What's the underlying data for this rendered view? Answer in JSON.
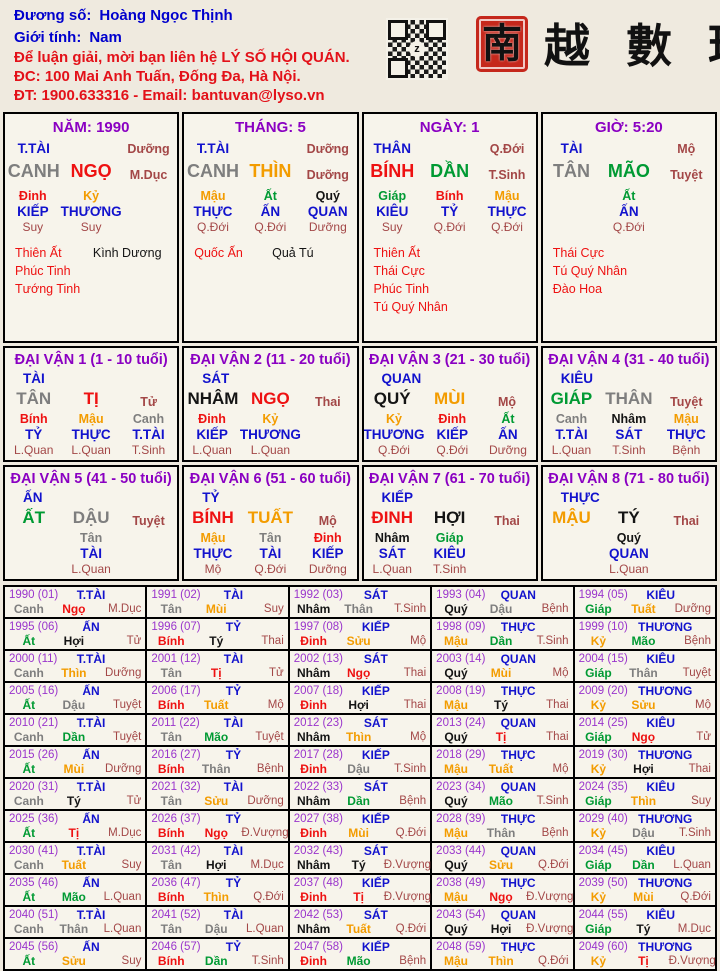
{
  "colors": {
    "blue": "#1212CD",
    "red": "#EE1111",
    "orange": "#F39C00",
    "green": "#009A33",
    "gray": "#7E7E7E",
    "black": "#141414",
    "stage": "#A34747",
    "purple": "#8A00C2",
    "year_label": "#9A35CC",
    "header_blue": "#0000CD",
    "header_red": "#E31119",
    "seal_red": "#C5281C"
  },
  "header": {
    "name_label": "Đương số:",
    "name_value": "Hoàng Ngọc Thịnh",
    "gender_label": "Giới tính:",
    "gender_value": "Nam",
    "contact_line1": "Để luận giải, mời bạn liên hệ LÝ SỐ HỘI QUÁN.",
    "contact_line2": "ĐC: 100 Mai Anh Tuấn, Đống Đa, Hà Nội.",
    "contact_line3": "ĐT: 1900.633316 - Email: bantuvan@lyso.vn",
    "logo_seal_char": "南",
    "logo_chars": "越 數 理"
  },
  "pillars": [
    {
      "title": "NĂM: 1990",
      "god": "T.TÀI",
      "stage1": "Dưỡng",
      "stem": "CANH",
      "stem_c": "gray",
      "branch": "NGỌ",
      "branch_c": "red",
      "stage2": "M.Dục",
      "hidden": [
        {
          "s": "Đinh",
          "c": "red",
          "g": "KIẾP",
          "st": "Suy"
        },
        {
          "s": "Kỷ",
          "c": "orange",
          "g": "THƯƠNG",
          "st": "Suy"
        },
        null
      ],
      "stars_red": [
        "Thiên Ất",
        "Phúc Tinh",
        "Tướng Tinh"
      ],
      "stars_black": [
        "Kình Dương"
      ]
    },
    {
      "title": "THÁNG: 5",
      "god": "T.TÀI",
      "stage1": "Dưỡng",
      "stem": "CANH",
      "stem_c": "gray",
      "branch": "THÌN",
      "branch_c": "orange",
      "stage2": "Dưỡng",
      "hidden": [
        {
          "s": "Mậu",
          "c": "orange",
          "g": "THỰC",
          "st": "Q.Đới"
        },
        {
          "s": "Ất",
          "c": "green",
          "g": "ẤN",
          "st": "Q.Đới"
        },
        {
          "s": "Quý",
          "c": "black",
          "g": "QUAN",
          "st": "Dưỡng"
        }
      ],
      "stars_red": [
        "Quốc Ấn"
      ],
      "stars_black": [
        "Quả Tú"
      ]
    },
    {
      "title": "NGÀY: 1",
      "god": "THÂN",
      "stage1": "Q.Đới",
      "stem": "BÍNH",
      "stem_c": "red",
      "branch": "DẦN",
      "branch_c": "green",
      "stage2": "T.Sinh",
      "hidden": [
        {
          "s": "Giáp",
          "c": "green",
          "g": "KIÊU",
          "st": "Suy"
        },
        {
          "s": "Bính",
          "c": "red",
          "g": "TỶ",
          "st": "Q.Đới"
        },
        {
          "s": "Mậu",
          "c": "orange",
          "g": "THỰC",
          "st": "Q.Đới"
        }
      ],
      "stars_red": [
        "Thiên Ất",
        "Thái Cực",
        "Phúc Tinh",
        "Tú Quý Nhân"
      ],
      "stars_black": []
    },
    {
      "title": "GIỜ: 5:20",
      "god": "TÀI",
      "stage1": "Mộ",
      "stem": "TÂN",
      "stem_c": "gray",
      "branch": "MÃO",
      "branch_c": "green",
      "stage2": "Tuyệt",
      "hidden": [
        null,
        {
          "s": "Ất",
          "c": "green",
          "g": "ẤN",
          "st": "Q.Đới"
        },
        null
      ],
      "stars_red": [
        "Thái Cực",
        "Tú Quý Nhân",
        "Đào Hoa"
      ],
      "stars_black": []
    }
  ],
  "dai_van": [
    {
      "title": "ĐẠI VẬN 1 (1 - 10 tuổi)",
      "god": "TÀI",
      "stem": "TÂN",
      "stem_c": "gray",
      "branch": "TỊ",
      "branch_c": "red",
      "stage": "Tử",
      "hidden": [
        {
          "s": "Bính",
          "c": "red",
          "g": "TỶ",
          "st": "L.Quan"
        },
        {
          "s": "Mậu",
          "c": "orange",
          "g": "THỰC",
          "st": "L.Quan"
        },
        {
          "s": "Canh",
          "c": "gray",
          "g": "T.TÀI",
          "st": "T.Sinh"
        }
      ]
    },
    {
      "title": "ĐẠI VẬN 2 (11 - 20 tuổi)",
      "god": "SÁT",
      "stem": "NHÂM",
      "stem_c": "black",
      "branch": "NGỌ",
      "branch_c": "red",
      "stage": "Thai",
      "hidden": [
        {
          "s": "Đinh",
          "c": "red",
          "g": "KIẾP",
          "st": "L.Quan"
        },
        {
          "s": "Kỷ",
          "c": "orange",
          "g": "THƯƠNG",
          "st": "L.Quan"
        },
        null
      ]
    },
    {
      "title": "ĐẠI VẬN 3 (21 - 30 tuổi)",
      "god": "QUAN",
      "stem": "QUÝ",
      "stem_c": "black",
      "branch": "MÙI",
      "branch_c": "orange",
      "stage": "Mộ",
      "hidden": [
        {
          "s": "Kỷ",
          "c": "orange",
          "g": "THƯƠNG",
          "st": "Q.Đới"
        },
        {
          "s": "Đinh",
          "c": "red",
          "g": "KIẾP",
          "st": "Q.Đới"
        },
        {
          "s": "Ất",
          "c": "green",
          "g": "ẤN",
          "st": "Dưỡng"
        }
      ]
    },
    {
      "title": "ĐẠI VẬN 4 (31 - 40 tuổi)",
      "god": "KIÊU",
      "stem": "GIÁP",
      "stem_c": "green",
      "branch": "THÂN",
      "branch_c": "gray",
      "stage": "Tuyệt",
      "hidden": [
        {
          "s": "Canh",
          "c": "gray",
          "g": "T.TÀI",
          "st": "L.Quan"
        },
        {
          "s": "Nhâm",
          "c": "black",
          "g": "SÁT",
          "st": "T.Sinh"
        },
        {
          "s": "Mậu",
          "c": "orange",
          "g": "THỰC",
          "st": "Bệnh"
        }
      ]
    },
    {
      "title": "ĐẠI VẬN 5 (41 - 50 tuổi)",
      "god": "ẤN",
      "stem": "ẤT",
      "stem_c": "green",
      "branch": "DẬU",
      "branch_c": "gray",
      "stage": "Tuyệt",
      "hidden": [
        null,
        {
          "s": "Tân",
          "c": "gray",
          "g": "TÀI",
          "st": "L.Quan"
        },
        null
      ]
    },
    {
      "title": "ĐẠI VẬN 6 (51 - 60 tuổi)",
      "god": "TỶ",
      "stem": "BÍNH",
      "stem_c": "red",
      "branch": "TUẤT",
      "branch_c": "orange",
      "stage": "Mộ",
      "hidden": [
        {
          "s": "Mậu",
          "c": "orange",
          "g": "THỰC",
          "st": "Mộ"
        },
        {
          "s": "Tân",
          "c": "gray",
          "g": "TÀI",
          "st": "Q.Đới"
        },
        {
          "s": "Đinh",
          "c": "red",
          "g": "KIẾP",
          "st": "Dưỡng"
        }
      ]
    },
    {
      "title": "ĐẠI VẬN 7 (61 - 70 tuổi)",
      "god": "KIẾP",
      "stem": "ĐINH",
      "stem_c": "red",
      "branch": "HỢI",
      "branch_c": "black",
      "stage": "Thai",
      "hidden": [
        {
          "s": "Nhâm",
          "c": "black",
          "g": "SÁT",
          "st": "L.Quan"
        },
        {
          "s": "Giáp",
          "c": "green",
          "g": "KIÊU",
          "st": "T.Sinh"
        },
        null
      ]
    },
    {
      "title": "ĐẠI VẬN 8 (71 - 80 tuổi)",
      "god": "THỰC",
      "stem": "MẬU",
      "stem_c": "orange",
      "branch": "TÝ",
      "branch_c": "black",
      "stage": "Thai",
      "hidden": [
        null,
        {
          "s": "Quý",
          "c": "black",
          "g": "QUAN",
          "st": "L.Quan"
        },
        null
      ]
    }
  ],
  "years": [
    {
      "y": "1990 (01)",
      "g": "T.TÀI",
      "s": "Canh",
      "sc": "gray",
      "b": "Ngọ",
      "bc": "red",
      "st": "M.Dục"
    },
    {
      "y": "1991 (02)",
      "g": "TÀI",
      "s": "Tân",
      "sc": "gray",
      "b": "Mùi",
      "bc": "orange",
      "st": "Suy"
    },
    {
      "y": "1992 (03)",
      "g": "SÁT",
      "s": "Nhâm",
      "sc": "black",
      "b": "Thân",
      "bc": "gray",
      "st": "T.Sinh"
    },
    {
      "y": "1993 (04)",
      "g": "QUAN",
      "s": "Quý",
      "sc": "black",
      "b": "Dậu",
      "bc": "gray",
      "st": "Bệnh"
    },
    {
      "y": "1994 (05)",
      "g": "KIÊU",
      "s": "Giáp",
      "sc": "green",
      "b": "Tuất",
      "bc": "orange",
      "st": "Dưỡng"
    },
    {
      "y": "1995 (06)",
      "g": "ẤN",
      "s": "Ất",
      "sc": "green",
      "b": "Hợi",
      "bc": "black",
      "st": "Tử"
    },
    {
      "y": "1996 (07)",
      "g": "TỶ",
      "s": "Bính",
      "sc": "red",
      "b": "Tý",
      "bc": "black",
      "st": "Thai"
    },
    {
      "y": "1997 (08)",
      "g": "KIẾP",
      "s": "Đinh",
      "sc": "red",
      "b": "Sửu",
      "bc": "orange",
      "st": "Mộ"
    },
    {
      "y": "1998 (09)",
      "g": "THỰC",
      "s": "Mậu",
      "sc": "orange",
      "b": "Dần",
      "bc": "green",
      "st": "T.Sinh"
    },
    {
      "y": "1999 (10)",
      "g": "THƯƠNG",
      "s": "Kỷ",
      "sc": "orange",
      "b": "Mão",
      "bc": "green",
      "st": "Bệnh"
    },
    {
      "y": "2000 (11)",
      "g": "T.TÀI",
      "s": "Canh",
      "sc": "gray",
      "b": "Thìn",
      "bc": "orange",
      "st": "Dưỡng"
    },
    {
      "y": "2001 (12)",
      "g": "TÀI",
      "s": "Tân",
      "sc": "gray",
      "b": "Tị",
      "bc": "red",
      "st": "Tử"
    },
    {
      "y": "2002 (13)",
      "g": "SÁT",
      "s": "Nhâm",
      "sc": "black",
      "b": "Ngọ",
      "bc": "red",
      "st": "Thai"
    },
    {
      "y": "2003 (14)",
      "g": "QUAN",
      "s": "Quý",
      "sc": "black",
      "b": "Mùi",
      "bc": "orange",
      "st": "Mộ"
    },
    {
      "y": "2004 (15)",
      "g": "KIÊU",
      "s": "Giáp",
      "sc": "green",
      "b": "Thân",
      "bc": "gray",
      "st": "Tuyệt"
    },
    {
      "y": "2005 (16)",
      "g": "ẤN",
      "s": "Ất",
      "sc": "green",
      "b": "Dậu",
      "bc": "gray",
      "st": "Tuyệt"
    },
    {
      "y": "2006 (17)",
      "g": "TỶ",
      "s": "Bính",
      "sc": "red",
      "b": "Tuất",
      "bc": "orange",
      "st": "Mộ"
    },
    {
      "y": "2007 (18)",
      "g": "KIẾP",
      "s": "Đinh",
      "sc": "red",
      "b": "Hợi",
      "bc": "black",
      "st": "Thai"
    },
    {
      "y": "2008 (19)",
      "g": "THỰC",
      "s": "Mậu",
      "sc": "orange",
      "b": "Tý",
      "bc": "black",
      "st": "Thai"
    },
    {
      "y": "2009 (20)",
      "g": "THƯƠNG",
      "s": "Kỷ",
      "sc": "orange",
      "b": "Sửu",
      "bc": "orange",
      "st": "Mộ"
    },
    {
      "y": "2010 (21)",
      "g": "T.TÀI",
      "s": "Canh",
      "sc": "gray",
      "b": "Dần",
      "bc": "green",
      "st": "Tuyệt"
    },
    {
      "y": "2011 (22)",
      "g": "TÀI",
      "s": "Tân",
      "sc": "gray",
      "b": "Mão",
      "bc": "green",
      "st": "Tuyệt"
    },
    {
      "y": "2012 (23)",
      "g": "SÁT",
      "s": "Nhâm",
      "sc": "black",
      "b": "Thìn",
      "bc": "orange",
      "st": "Mộ"
    },
    {
      "y": "2013 (24)",
      "g": "QUAN",
      "s": "Quý",
      "sc": "black",
      "b": "Tị",
      "bc": "red",
      "st": "Thai"
    },
    {
      "y": "2014 (25)",
      "g": "KIÊU",
      "s": "Giáp",
      "sc": "green",
      "b": "Ngọ",
      "bc": "red",
      "st": "Tử"
    },
    {
      "y": "2015 (26)",
      "g": "ẤN",
      "s": "Ất",
      "sc": "green",
      "b": "Mùi",
      "bc": "orange",
      "st": "Dưỡng"
    },
    {
      "y": "2016 (27)",
      "g": "TỶ",
      "s": "Bính",
      "sc": "red",
      "b": "Thân",
      "bc": "gray",
      "st": "Bệnh"
    },
    {
      "y": "2017 (28)",
      "g": "KIẾP",
      "s": "Đinh",
      "sc": "red",
      "b": "Dậu",
      "bc": "gray",
      "st": "T.Sinh"
    },
    {
      "y": "2018 (29)",
      "g": "THỰC",
      "s": "Mậu",
      "sc": "orange",
      "b": "Tuất",
      "bc": "orange",
      "st": "Mộ"
    },
    {
      "y": "2019 (30)",
      "g": "THƯƠNG",
      "s": "Kỷ",
      "sc": "orange",
      "b": "Hợi",
      "bc": "black",
      "st": "Thai"
    },
    {
      "y": "2020 (31)",
      "g": "T.TÀI",
      "s": "Canh",
      "sc": "gray",
      "b": "Tý",
      "bc": "black",
      "st": "Tử"
    },
    {
      "y": "2021 (32)",
      "g": "TÀI",
      "s": "Tân",
      "sc": "gray",
      "b": "Sửu",
      "bc": "orange",
      "st": "Dưỡng"
    },
    {
      "y": "2022 (33)",
      "g": "SÁT",
      "s": "Nhâm",
      "sc": "black",
      "b": "Dần",
      "bc": "green",
      "st": "Bệnh"
    },
    {
      "y": "2023 (34)",
      "g": "QUAN",
      "s": "Quý",
      "sc": "black",
      "b": "Mão",
      "bc": "green",
      "st": "T.Sinh"
    },
    {
      "y": "2024 (35)",
      "g": "KIÊU",
      "s": "Giáp",
      "sc": "green",
      "b": "Thìn",
      "bc": "orange",
      "st": "Suy"
    },
    {
      "y": "2025 (36)",
      "g": "ẤN",
      "s": "Ất",
      "sc": "green",
      "b": "Tị",
      "bc": "red",
      "st": "M.Dục"
    },
    {
      "y": "2026 (37)",
      "g": "TỶ",
      "s": "Bính",
      "sc": "red",
      "b": "Ngọ",
      "bc": "red",
      "st": "Đ.Vượng"
    },
    {
      "y": "2027 (38)",
      "g": "KIẾP",
      "s": "Đinh",
      "sc": "red",
      "b": "Mùi",
      "bc": "orange",
      "st": "Q.Đới"
    },
    {
      "y": "2028 (39)",
      "g": "THỰC",
      "s": "Mậu",
      "sc": "orange",
      "b": "Thân",
      "bc": "gray",
      "st": "Bệnh"
    },
    {
      "y": "2029 (40)",
      "g": "THƯƠNG",
      "s": "Kỷ",
      "sc": "orange",
      "b": "Dậu",
      "bc": "gray",
      "st": "T.Sinh"
    },
    {
      "y": "2030 (41)",
      "g": "T.TÀI",
      "s": "Canh",
      "sc": "gray",
      "b": "Tuất",
      "bc": "orange",
      "st": "Suy"
    },
    {
      "y": "2031 (42)",
      "g": "TÀI",
      "s": "Tân",
      "sc": "gray",
      "b": "Hợi",
      "bc": "black",
      "st": "M.Dục"
    },
    {
      "y": "2032 (43)",
      "g": "SÁT",
      "s": "Nhâm",
      "sc": "black",
      "b": "Tý",
      "bc": "black",
      "st": "Đ.Vượng"
    },
    {
      "y": "2033 (44)",
      "g": "QUAN",
      "s": "Quý",
      "sc": "black",
      "b": "Sửu",
      "bc": "orange",
      "st": "Q.Đới"
    },
    {
      "y": "2034 (45)",
      "g": "KIÊU",
      "s": "Giáp",
      "sc": "green",
      "b": "Dần",
      "bc": "green",
      "st": "L.Quan"
    },
    {
      "y": "2035 (46)",
      "g": "ẤN",
      "s": "Ất",
      "sc": "green",
      "b": "Mão",
      "bc": "green",
      "st": "L.Quan"
    },
    {
      "y": "2036 (47)",
      "g": "TỶ",
      "s": "Bính",
      "sc": "red",
      "b": "Thìn",
      "bc": "orange",
      "st": "Q.Đới"
    },
    {
      "y": "2037 (48)",
      "g": "KIẾP",
      "s": "Đinh",
      "sc": "red",
      "b": "Tị",
      "bc": "red",
      "st": "Đ.Vượng"
    },
    {
      "y": "2038 (49)",
      "g": "THỰC",
      "s": "Mậu",
      "sc": "orange",
      "b": "Ngọ",
      "bc": "red",
      "st": "Đ.Vượng"
    },
    {
      "y": "2039 (50)",
      "g": "THƯƠNG",
      "s": "Kỷ",
      "sc": "orange",
      "b": "Mùi",
      "bc": "orange",
      "st": "Q.Đới"
    },
    {
      "y": "2040 (51)",
      "g": "T.TÀI",
      "s": "Canh",
      "sc": "gray",
      "b": "Thân",
      "bc": "gray",
      "st": "L.Quan"
    },
    {
      "y": "2041 (52)",
      "g": "TÀI",
      "s": "Tân",
      "sc": "gray",
      "b": "Dậu",
      "bc": "gray",
      "st": "L.Quan"
    },
    {
      "y": "2042 (53)",
      "g": "SÁT",
      "s": "Nhâm",
      "sc": "black",
      "b": "Tuất",
      "bc": "orange",
      "st": "Q.Đới"
    },
    {
      "y": "2043 (54)",
      "g": "QUAN",
      "s": "Quý",
      "sc": "black",
      "b": "Hợi",
      "bc": "black",
      "st": "Đ.Vượng"
    },
    {
      "y": "2044 (55)",
      "g": "KIÊU",
      "s": "Giáp",
      "sc": "green",
      "b": "Tý",
      "bc": "black",
      "st": "M.Dục"
    },
    {
      "y": "2045 (56)",
      "g": "ẤN",
      "s": "Ất",
      "sc": "green",
      "b": "Sửu",
      "bc": "orange",
      "st": "Suy"
    },
    {
      "y": "2046 (57)",
      "g": "TỶ",
      "s": "Bính",
      "sc": "red",
      "b": "Dần",
      "bc": "green",
      "st": "T.Sinh"
    },
    {
      "y": "2047 (58)",
      "g": "KIẾP",
      "s": "Đinh",
      "sc": "red",
      "b": "Mão",
      "bc": "green",
      "st": "Bệnh"
    },
    {
      "y": "2048 (59)",
      "g": "THỰC",
      "s": "Mậu",
      "sc": "orange",
      "b": "Thìn",
      "bc": "orange",
      "st": "Q.Đới"
    },
    {
      "y": "2049 (60)",
      "g": "THƯƠNG",
      "s": "Kỷ",
      "sc": "orange",
      "b": "Tị",
      "bc": "red",
      "st": "Đ.Vượng"
    }
  ]
}
